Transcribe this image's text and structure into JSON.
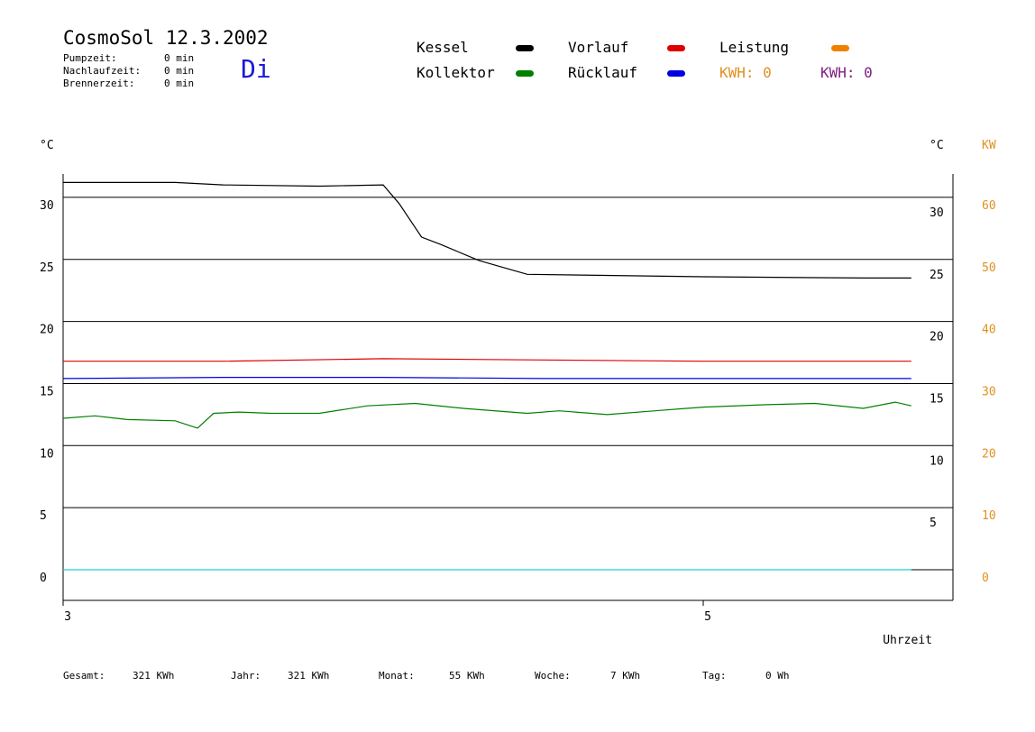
{
  "header": {
    "title": "CosmoSol 12.3.2002",
    "day": "Di",
    "stats": [
      {
        "label": "Pumpzeit:",
        "value": "0 min"
      },
      {
        "label": "Nachlaufzeit:",
        "value": "0 min"
      },
      {
        "label": "Brennerzeit:",
        "value": "0 min"
      }
    ]
  },
  "legend": {
    "kessel": {
      "label": "Kessel",
      "color": "#000000"
    },
    "kollektor": {
      "label": "Kollektor",
      "color": "#008000"
    },
    "vorlauf": {
      "label": "Vorlauf",
      "color": "#e00000"
    },
    "ruecklauf": {
      "label": "Rücklauf",
      "color": "#0000e0"
    },
    "leistung": {
      "label": "Leistung",
      "color": "#f08000"
    },
    "kwh1": {
      "label": "KWH: 0",
      "color": "#e09020"
    },
    "kwh2": {
      "label": "KWH: 0",
      "color": "#802080"
    }
  },
  "chart_data": {
    "type": "line",
    "left_axis_unit": "°C",
    "right_axis_unit": "°C",
    "kw_axis_unit": "KW",
    "xlabel": "Uhrzeit",
    "x_ticks": [
      "3",
      "5"
    ],
    "y_ticks_left": [
      0,
      5,
      10,
      15,
      20,
      25,
      30
    ],
    "y_ticks_right": [
      5,
      10,
      15,
      20,
      25,
      30
    ],
    "kw_ticks": [
      0,
      10,
      20,
      30,
      40,
      50,
      60
    ],
    "ylim": [
      0,
      34
    ],
    "xlim": [
      3,
      5.78
    ],
    "series": [
      {
        "name": "Kessel",
        "color": "#000000",
        "x": [
          3.0,
          3.35,
          3.5,
          3.8,
          4.0,
          4.05,
          4.12,
          4.18,
          4.3,
          4.45,
          5.0,
          5.5,
          5.65
        ],
        "y": [
          31.2,
          31.2,
          31.0,
          30.9,
          31.0,
          29.5,
          26.8,
          26.2,
          24.9,
          23.8,
          23.6,
          23.5,
          23.5
        ]
      },
      {
        "name": "Vorlauf",
        "color": "#e00000",
        "x": [
          3.0,
          3.5,
          4.0,
          4.5,
          5.0,
          5.65
        ],
        "y": [
          16.8,
          16.8,
          17.0,
          16.9,
          16.8,
          16.8
        ]
      },
      {
        "name": "Rücklauf",
        "color": "#0000e0",
        "x": [
          3.0,
          3.5,
          4.0,
          4.5,
          5.0,
          5.65
        ],
        "y": [
          15.4,
          15.5,
          15.5,
          15.4,
          15.4,
          15.4
        ]
      },
      {
        "name": "Kollektor",
        "color": "#008000",
        "x": [
          3.0,
          3.1,
          3.2,
          3.35,
          3.42,
          3.47,
          3.55,
          3.65,
          3.8,
          3.95,
          4.1,
          4.25,
          4.45,
          4.55,
          4.7,
          4.85,
          5.0,
          5.2,
          5.35,
          5.5,
          5.6,
          5.65
        ],
        "y": [
          12.2,
          12.4,
          12.1,
          12.0,
          11.4,
          12.6,
          12.7,
          12.6,
          12.6,
          13.2,
          13.4,
          13.0,
          12.6,
          12.8,
          12.5,
          12.8,
          13.1,
          13.3,
          13.4,
          13.0,
          13.5,
          13.2
        ]
      },
      {
        "name": "Leistung",
        "color": "#20d0d0",
        "x": [
          3.0,
          5.65
        ],
        "y": [
          0,
          0
        ]
      }
    ]
  },
  "footer": [
    {
      "label": "Gesamt:",
      "value": "321 KWh"
    },
    {
      "label": "Jahr:",
      "value": "321 KWh"
    },
    {
      "label": "Monat:",
      "value": "55 KWh"
    },
    {
      "label": "Woche:",
      "value": "7 KWh"
    },
    {
      "label": "Tag:",
      "value": "0 Wh"
    }
  ]
}
